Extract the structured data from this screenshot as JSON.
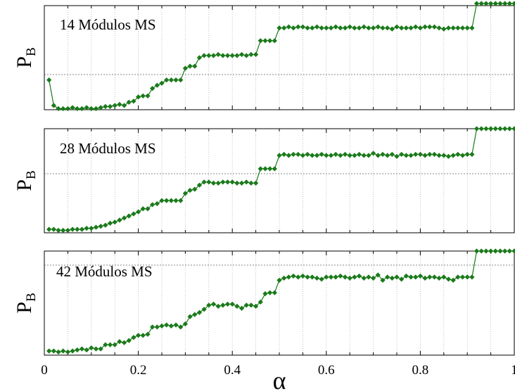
{
  "chart_data": [
    {
      "type": "line",
      "title": "14 Módulos MS",
      "ylabel": "P",
      "ylabel_subscript": "B",
      "xlim": [
        0,
        1
      ],
      "grid": true,
      "series": [
        {
          "color": "#1a7a1a",
          "marker": "diamond",
          "x": [
            0.01,
            0.02,
            0.03,
            0.04,
            0.05,
            0.06,
            0.07,
            0.08,
            0.09,
            0.1,
            0.11,
            0.12,
            0.13,
            0.14,
            0.15,
            0.16,
            0.17,
            0.18,
            0.19,
            0.2,
            0.21,
            0.22,
            0.23,
            0.24,
            0.25,
            0.26,
            0.27,
            0.28,
            0.29,
            0.3,
            0.31,
            0.32,
            0.33,
            0.34,
            0.35,
            0.36,
            0.37,
            0.38,
            0.39,
            0.4,
            0.41,
            0.42,
            0.43,
            0.44,
            0.45,
            0.46,
            0.47,
            0.48,
            0.49,
            0.5,
            0.51,
            0.52,
            0.53,
            0.54,
            0.55,
            0.56,
            0.57,
            0.58,
            0.59,
            0.6,
            0.61,
            0.62,
            0.63,
            0.64,
            0.65,
            0.66,
            0.67,
            0.68,
            0.69,
            0.7,
            0.71,
            0.72,
            0.73,
            0.74,
            0.75,
            0.76,
            0.77,
            0.78,
            0.79,
            0.8,
            0.81,
            0.82,
            0.83,
            0.84,
            0.85,
            0.86,
            0.87,
            0.88,
            0.89,
            0.9,
            0.91,
            0.92,
            0.93,
            0.94,
            0.95,
            0.96,
            0.97,
            0.98,
            0.99,
            1.0
          ],
          "y": [
            0.28,
            0.04,
            0.01,
            0.01,
            0.01,
            0.02,
            0.01,
            0.01,
            0.02,
            0.01,
            0.01,
            0.02,
            0.03,
            0.03,
            0.04,
            0.05,
            0.04,
            0.07,
            0.08,
            0.12,
            0.13,
            0.13,
            0.2,
            0.23,
            0.25,
            0.28,
            0.28,
            0.28,
            0.28,
            0.39,
            0.41,
            0.41,
            0.49,
            0.51,
            0.51,
            0.51,
            0.52,
            0.51,
            0.51,
            0.51,
            0.51,
            0.52,
            0.51,
            0.52,
            0.52,
            0.65,
            0.65,
            0.65,
            0.65,
            0.77,
            0.77,
            0.78,
            0.77,
            0.78,
            0.78,
            0.77,
            0.77,
            0.78,
            0.77,
            0.77,
            0.77,
            0.78,
            0.77,
            0.77,
            0.78,
            0.77,
            0.77,
            0.78,
            0.77,
            0.77,
            0.78,
            0.77,
            0.77,
            0.76,
            0.78,
            0.77,
            0.77,
            0.77,
            0.78,
            0.77,
            0.78,
            0.78,
            0.78,
            0.77,
            0.76,
            0.77,
            0.77,
            0.77,
            0.77,
            0.77,
            0.77,
            1.0,
            1.0,
            1.0,
            1.0,
            1.0,
            1.0,
            1.0,
            1.0,
            1.0
          ]
        }
      ]
    },
    {
      "type": "line",
      "title": "28 Módulos MS",
      "ylabel": "P",
      "ylabel_subscript": "B",
      "xlim": [
        0,
        1
      ],
      "grid": true,
      "series": [
        {
          "color": "#1a7a1a",
          "marker": "diamond",
          "x": [
            0.01,
            0.02,
            0.03,
            0.04,
            0.05,
            0.06,
            0.07,
            0.08,
            0.09,
            0.1,
            0.11,
            0.12,
            0.13,
            0.14,
            0.15,
            0.16,
            0.17,
            0.18,
            0.19,
            0.2,
            0.21,
            0.22,
            0.23,
            0.24,
            0.25,
            0.26,
            0.27,
            0.28,
            0.29,
            0.3,
            0.31,
            0.32,
            0.33,
            0.34,
            0.35,
            0.36,
            0.37,
            0.38,
            0.39,
            0.4,
            0.41,
            0.42,
            0.43,
            0.44,
            0.45,
            0.46,
            0.47,
            0.48,
            0.49,
            0.5,
            0.51,
            0.52,
            0.53,
            0.54,
            0.55,
            0.56,
            0.57,
            0.58,
            0.59,
            0.6,
            0.61,
            0.62,
            0.63,
            0.64,
            0.65,
            0.66,
            0.67,
            0.68,
            0.69,
            0.7,
            0.71,
            0.72,
            0.73,
            0.74,
            0.75,
            0.76,
            0.77,
            0.78,
            0.79,
            0.8,
            0.81,
            0.82,
            0.83,
            0.84,
            0.85,
            0.86,
            0.87,
            0.88,
            0.89,
            0.9,
            0.91,
            0.92,
            0.93,
            0.94,
            0.95,
            0.96,
            0.97,
            0.98,
            0.99,
            1.0
          ],
          "y": [
            0.02,
            0.02,
            0.01,
            0.01,
            0.01,
            0.02,
            0.02,
            0.02,
            0.03,
            0.03,
            0.04,
            0.05,
            0.06,
            0.08,
            0.09,
            0.11,
            0.13,
            0.15,
            0.17,
            0.19,
            0.22,
            0.22,
            0.26,
            0.27,
            0.3,
            0.3,
            0.3,
            0.3,
            0.3,
            0.37,
            0.4,
            0.41,
            0.45,
            0.48,
            0.48,
            0.47,
            0.47,
            0.48,
            0.48,
            0.48,
            0.47,
            0.47,
            0.48,
            0.47,
            0.47,
            0.61,
            0.61,
            0.61,
            0.61,
            0.74,
            0.75,
            0.74,
            0.75,
            0.75,
            0.74,
            0.75,
            0.74,
            0.74,
            0.75,
            0.74,
            0.74,
            0.75,
            0.74,
            0.75,
            0.74,
            0.74,
            0.75,
            0.74,
            0.74,
            0.76,
            0.74,
            0.75,
            0.74,
            0.75,
            0.73,
            0.75,
            0.74,
            0.74,
            0.75,
            0.75,
            0.74,
            0.75,
            0.75,
            0.74,
            0.74,
            0.73,
            0.74,
            0.75,
            0.74,
            0.75,
            0.75,
            1.0,
            1.0,
            1.0,
            1.0,
            1.0,
            1.0,
            1.0,
            1.0,
            1.0
          ]
        }
      ]
    },
    {
      "type": "line",
      "title": "42 Módulos MS",
      "ylabel": "P",
      "ylabel_subscript": "B",
      "xlim": [
        0,
        1
      ],
      "grid": true,
      "xticks": [
        "0",
        "0.2",
        "0.4",
        "0.6",
        "0.8",
        "1"
      ],
      "xlabel": "α",
      "series": [
        {
          "color": "#1a7a1a",
          "marker": "diamond",
          "x": [
            0.01,
            0.02,
            0.03,
            0.04,
            0.05,
            0.06,
            0.07,
            0.08,
            0.09,
            0.1,
            0.11,
            0.12,
            0.13,
            0.14,
            0.15,
            0.16,
            0.17,
            0.18,
            0.19,
            0.2,
            0.21,
            0.22,
            0.23,
            0.24,
            0.25,
            0.26,
            0.27,
            0.28,
            0.29,
            0.3,
            0.31,
            0.32,
            0.33,
            0.34,
            0.35,
            0.36,
            0.37,
            0.38,
            0.39,
            0.4,
            0.41,
            0.42,
            0.43,
            0.44,
            0.45,
            0.46,
            0.47,
            0.48,
            0.49,
            0.5,
            0.51,
            0.52,
            0.53,
            0.54,
            0.55,
            0.56,
            0.57,
            0.58,
            0.59,
            0.6,
            0.61,
            0.62,
            0.63,
            0.64,
            0.65,
            0.66,
            0.67,
            0.68,
            0.69,
            0.7,
            0.71,
            0.72,
            0.73,
            0.74,
            0.75,
            0.76,
            0.77,
            0.78,
            0.79,
            0.8,
            0.81,
            0.82,
            0.83,
            0.84,
            0.85,
            0.86,
            0.87,
            0.88,
            0.89,
            0.9,
            0.91,
            0.92,
            0.93,
            0.94,
            0.95,
            0.96,
            0.97,
            0.98,
            0.99,
            1.0
          ],
          "y": [
            0.04,
            0.04,
            0.03,
            0.04,
            0.03,
            0.04,
            0.05,
            0.06,
            0.05,
            0.07,
            0.06,
            0.06,
            0.1,
            0.1,
            0.1,
            0.13,
            0.12,
            0.14,
            0.17,
            0.19,
            0.19,
            0.2,
            0.27,
            0.27,
            0.28,
            0.29,
            0.28,
            0.29,
            0.27,
            0.3,
            0.37,
            0.39,
            0.41,
            0.44,
            0.48,
            0.49,
            0.47,
            0.48,
            0.49,
            0.49,
            0.47,
            0.45,
            0.48,
            0.48,
            0.47,
            0.51,
            0.59,
            0.6,
            0.6,
            0.72,
            0.74,
            0.75,
            0.76,
            0.75,
            0.76,
            0.75,
            0.75,
            0.74,
            0.73,
            0.75,
            0.75,
            0.75,
            0.76,
            0.75,
            0.74,
            0.75,
            0.76,
            0.74,
            0.75,
            0.74,
            0.77,
            0.72,
            0.75,
            0.74,
            0.75,
            0.73,
            0.76,
            0.75,
            0.75,
            0.76,
            0.74,
            0.75,
            0.75,
            0.74,
            0.75,
            0.73,
            0.72,
            0.75,
            0.75,
            0.75,
            0.75,
            1.0,
            1.0,
            1.0,
            1.0,
            1.0,
            1.0,
            1.0,
            1.0,
            1.0
          ]
        }
      ]
    }
  ]
}
